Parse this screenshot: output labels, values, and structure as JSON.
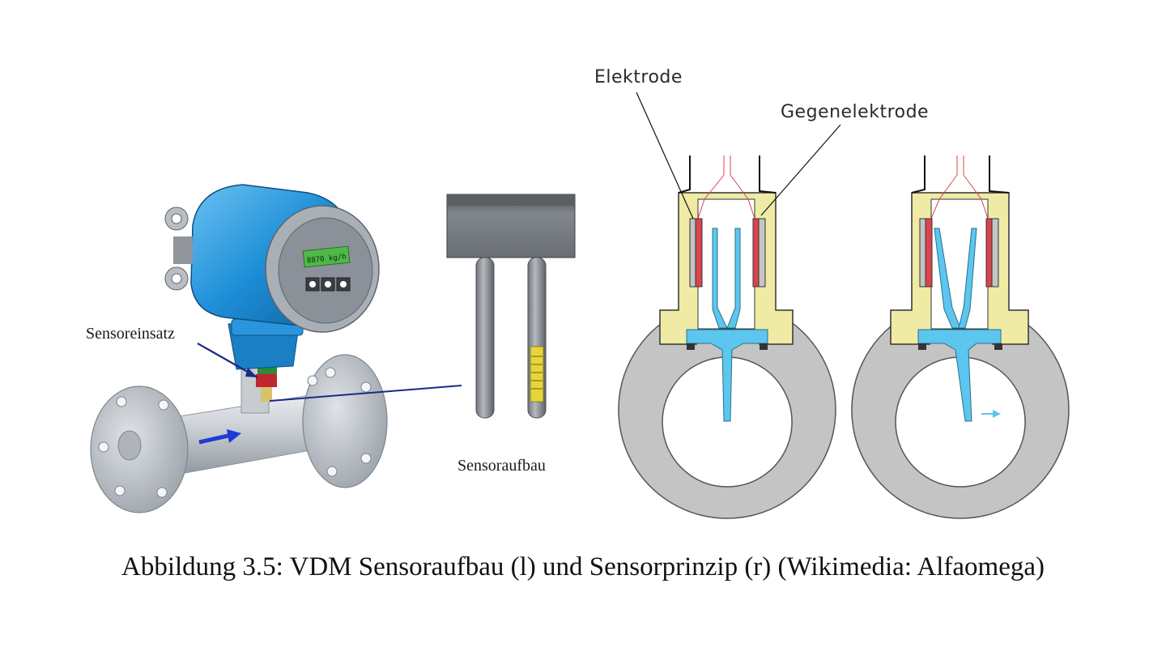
{
  "labels": {
    "sensor_insert": "Sensoreinsatz",
    "sensor_structure": "Sensoraufbau",
    "electrode": "Elektrode",
    "counter_electrode": "Gegenelektrode"
  },
  "display_text": "8870 kg/h",
  "caption": "Abbildung 3.5: VDM Sensoraufbau (l) und Sensorprinzip (r) (Wikimedia: Alfaomega)",
  "colors": {
    "housing_blue": "#1e8fd8",
    "pipe_gray": "#b9bec4",
    "arrow_blue": "#1f3bd6",
    "pointer_navy": "#1a2a8a",
    "mount_yellow": "#efeba5",
    "electrode_red": "#d9444f",
    "fluid_cyan": "#5cc6ee",
    "ring_gray": "#c4c4c4"
  }
}
